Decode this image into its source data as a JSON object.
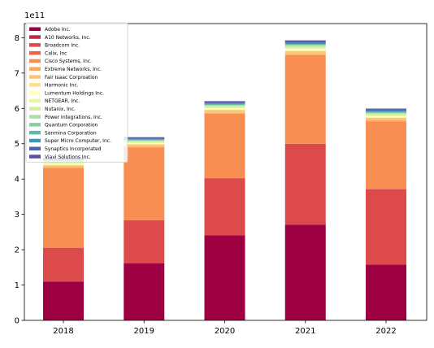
{
  "chart_data": {
    "type": "bar",
    "stacked": true,
    "categories": [
      "2018",
      "2019",
      "2020",
      "2021",
      "2022"
    ],
    "y_multiplier_label": "1e11",
    "y_unit_multiplier": 100000000000,
    "ylim": [
      0,
      8.4
    ],
    "yticks": [
      0,
      1,
      2,
      3,
      4,
      5,
      6,
      7,
      8
    ],
    "legend_position": "upper-left",
    "grid": false,
    "series": [
      {
        "name": "Adobe Inc.",
        "color": "#9e0142",
        "values": [
          1.1,
          1.62,
          2.41,
          2.71,
          1.58
        ]
      },
      {
        "name": "A10 Networks, Inc.",
        "color": "#c2294a",
        "values": [
          0.005,
          0.005,
          0.005,
          0.005,
          0.005
        ]
      },
      {
        "name": "Broadcom Inc.",
        "color": "#dd4a4c",
        "values": [
          0.95,
          1.21,
          1.61,
          2.28,
          2.13
        ]
      },
      {
        "name": "Calix, Inc",
        "color": "#ee6445",
        "values": [
          0.005,
          0.005,
          0.005,
          0.005,
          0.005
        ]
      },
      {
        "name": "Cisco Systems, Inc.",
        "color": "#f98e52",
        "values": [
          2.25,
          2.05,
          1.82,
          2.51,
          1.91
        ]
      },
      {
        "name": "Extreme Networks, Inc.",
        "color": "#fca55d",
        "values": [
          0.03,
          0.03,
          0.02,
          0.02,
          0.03
        ]
      },
      {
        "name": "Fair Isaac Corproation",
        "color": "#fdc474",
        "values": [
          0.05,
          0.06,
          0.08,
          0.09,
          0.07
        ]
      },
      {
        "name": "Harmonic Inc.",
        "color": "#fee08b",
        "values": [
          0.01,
          0.01,
          0.01,
          0.01,
          0.01
        ]
      },
      {
        "name": "Lumentum Holdings Inc.",
        "color": "#ffffbe",
        "values": [
          0.03,
          0.03,
          0.04,
          0.05,
          0.04
        ]
      },
      {
        "name": "NETGEAR, Inc.",
        "color": "#eaf79e",
        "values": [
          0.03,
          0.02,
          0.02,
          0.02,
          0.02
        ]
      },
      {
        "name": "Nutanix, Inc.",
        "color": "#d6ee9b",
        "values": [
          0.03,
          0.04,
          0.05,
          0.06,
          0.05
        ]
      },
      {
        "name": "Power Integrations, Inc.",
        "color": "#abdda4",
        "values": [
          0.01,
          0.01,
          0.02,
          0.03,
          0.02
        ]
      },
      {
        "name": "Quantum Corporation",
        "color": "#88cfa4",
        "values": [
          0.005,
          0.005,
          0.005,
          0.005,
          0.005
        ]
      },
      {
        "name": "Sanmina Corporation",
        "color": "#5fbaa8",
        "values": [
          0.02,
          0.02,
          0.03,
          0.03,
          0.03
        ]
      },
      {
        "name": "Super Micro Computer, Inc.",
        "color": "#3f96b7",
        "values": [
          0.02,
          0.02,
          0.02,
          0.03,
          0.03
        ]
      },
      {
        "name": "Synaptics Incorporated",
        "color": "#4d65ad",
        "values": [
          0.03,
          0.03,
          0.04,
          0.05,
          0.04
        ]
      },
      {
        "name": "Viavi Solutions Inc.",
        "color": "#5e4fa2",
        "values": [
          0.02,
          0.02,
          0.02,
          0.02,
          0.02
        ]
      }
    ]
  }
}
